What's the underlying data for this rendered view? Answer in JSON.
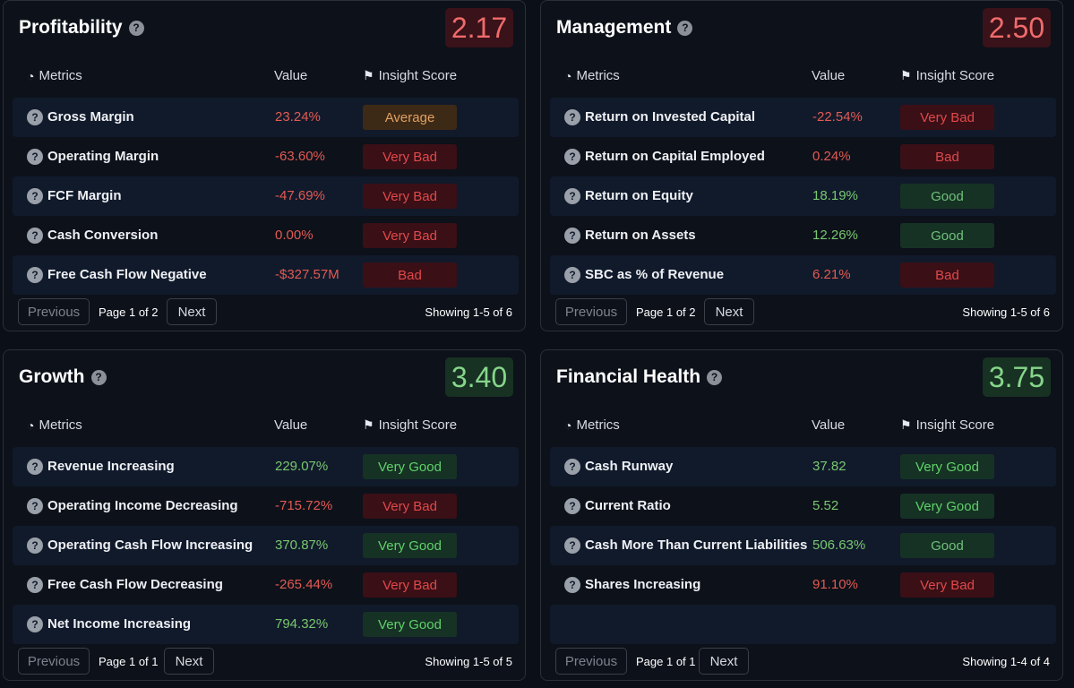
{
  "headers": {
    "metrics": "Metrics",
    "value": "Value",
    "insight": "Insight Score"
  },
  "cards": [
    {
      "title": "Profitability",
      "score": "2.17",
      "rows": [
        {
          "name": "Gross Margin",
          "value": "23.24%",
          "badge": "Average"
        },
        {
          "name": "Operating Margin",
          "value": "-63.60%",
          "badge": "Very Bad"
        },
        {
          "name": "FCF Margin",
          "value": "-47.69%",
          "badge": "Very Bad"
        },
        {
          "name": "Cash Conversion",
          "value": "0.00%",
          "badge": "Very Bad"
        },
        {
          "name": "Free Cash Flow Negative",
          "value": "-$327.57M",
          "badge": "Bad"
        }
      ],
      "prev": "Previous",
      "page": "Page 1 of 2",
      "next": "Next",
      "showing": "Showing 1-5 of 6"
    },
    {
      "title": "Management",
      "score": "2.50",
      "rows": [
        {
          "name": "Return on Invested Capital",
          "value": "-22.54%",
          "badge": "Very Bad"
        },
        {
          "name": "Return on Capital Employed",
          "value": "0.24%",
          "badge": "Bad"
        },
        {
          "name": "Return on Equity",
          "value": "18.19%",
          "badge": "Good"
        },
        {
          "name": "Return on Assets",
          "value": "12.26%",
          "badge": "Good"
        },
        {
          "name": "SBC as % of Revenue",
          "value": "6.21%",
          "badge": "Bad"
        }
      ],
      "prev": "Previous",
      "page": "Page 1 of 2",
      "next": "Next",
      "showing": "Showing 1-5 of 6"
    },
    {
      "title": "Growth",
      "score": "3.40",
      "rows": [
        {
          "name": "Revenue Increasing",
          "value": "229.07%",
          "badge": "Very Good"
        },
        {
          "name": "Operating Income Decreasing",
          "value": "-715.72%",
          "badge": "Very Bad"
        },
        {
          "name": "Operating Cash Flow Increasing",
          "value": "370.87%",
          "badge": "Very Good"
        },
        {
          "name": "Free Cash Flow Decreasing",
          "value": "-265.44%",
          "badge": "Very Bad"
        },
        {
          "name": "Net Income Increasing",
          "value": "794.32%",
          "badge": "Very Good"
        }
      ],
      "prev": "Previous",
      "page": "Page 1 of 1",
      "next": "Next",
      "showing": "Showing 1-5 of 5"
    },
    {
      "title": "Financial Health",
      "score": "3.75",
      "rows": [
        {
          "name": "Cash Runway",
          "value": "37.82",
          "badge": "Very Good"
        },
        {
          "name": "Current Ratio",
          "value": "5.52",
          "badge": "Very Good"
        },
        {
          "name": "Cash More Than Current Liabilities",
          "value": "506.63%",
          "badge": "Good"
        },
        {
          "name": "Shares Increasing",
          "value": "91.10%",
          "badge": "Very Bad"
        }
      ],
      "prev": "Previous",
      "page": "Page 1 of 1",
      "next": "Next",
      "showing": "Showing 1-4 of 4"
    }
  ]
}
